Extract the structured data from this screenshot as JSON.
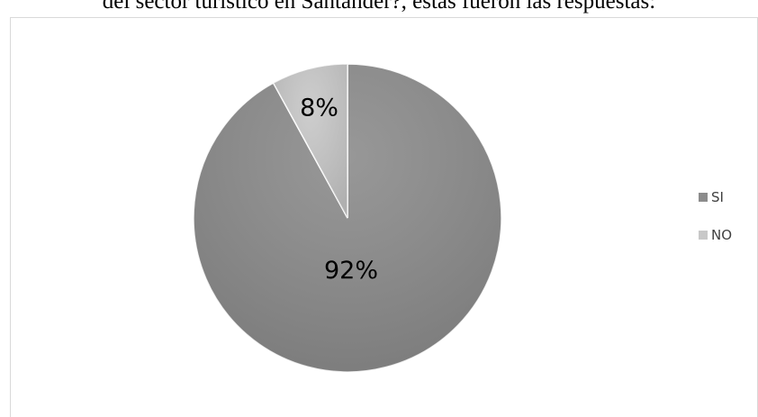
{
  "document": {
    "text_above": "del sector turístico en Santander?, estas fueron las respuestas:"
  },
  "chart_data": {
    "type": "pie",
    "title": "",
    "slices": [
      {
        "label": "SI",
        "value": 92,
        "display": "92%",
        "color": "#8c8c8c"
      },
      {
        "label": "NO",
        "value": 8,
        "display": "8%",
        "color": "#c8c8c8"
      }
    ],
    "legend": {
      "placement": "right",
      "entries": [
        "SI",
        "NO"
      ]
    }
  }
}
